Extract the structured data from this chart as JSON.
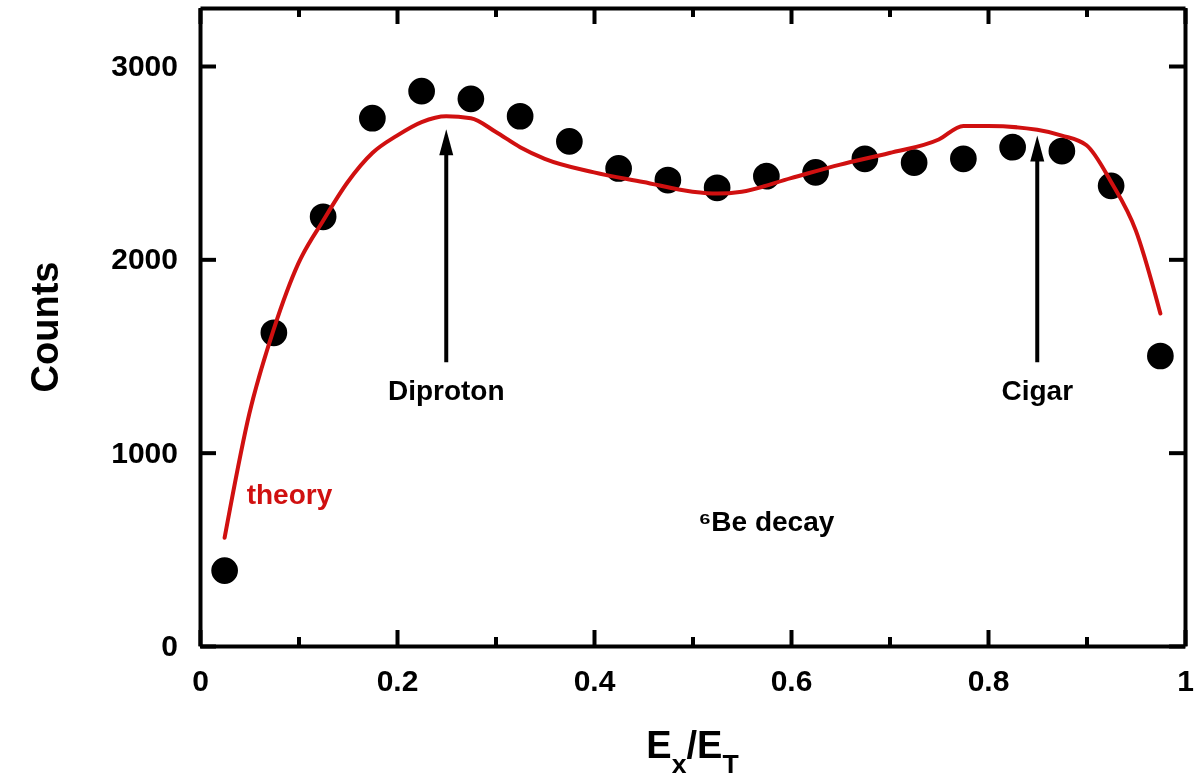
{
  "chart_data": {
    "type": "scatter",
    "xlabel": "E$_{x}$/E$_{T}$",
    "ylabel": "Counts",
    "xlim": [
      0,
      1
    ],
    "ylim": [
      0,
      3300
    ],
    "xticks": [
      0,
      {
        "value": 0.1,
        "label": null
      },
      0.2,
      {
        "value": 0.3,
        "label": null
      },
      0.4,
      {
        "value": 0.5,
        "label": null
      },
      0.6,
      {
        "value": 0.7,
        "label": null
      },
      0.8,
      {
        "value": 0.9,
        "label": null
      },
      1
    ],
    "yticks": [
      0,
      1000,
      2000,
      3000
    ],
    "series": [
      {
        "color": "#000000",
        "marker": "circle",
        "x": [
          0.025,
          0.075,
          0.125,
          0.175,
          0.225,
          0.275,
          0.325,
          0.375,
          0.425,
          0.475,
          0.525,
          0.575,
          0.625,
          0.675,
          0.725,
          0.775,
          0.825,
          0.875,
          0.925,
          0.975
        ],
        "values": [
          390,
          1620,
          2220,
          2730,
          2870,
          2830,
          2740,
          2610,
          2470,
          2410,
          2370,
          2430,
          2450,
          2520,
          2500,
          2520,
          2580,
          2560,
          2380,
          1500
        ]
      },
      {
        "type": "line",
        "name": "theory",
        "color": "#d01010",
        "marker": "none",
        "line_style": "solid",
        "x": [
          0.025,
          0.05,
          0.075,
          0.1,
          0.125,
          0.15,
          0.175,
          0.2,
          0.225,
          0.25,
          0.275,
          0.3,
          0.325,
          0.35,
          0.4,
          0.45,
          0.5,
          0.525,
          0.55,
          0.6,
          0.65,
          0.7,
          0.75,
          0.775,
          0.8,
          0.85,
          0.875,
          0.9,
          0.925,
          0.95,
          0.975
        ],
        "values": [
          560,
          1200,
          1640,
          1980,
          2200,
          2400,
          2550,
          2640,
          2710,
          2740,
          2730,
          2660,
          2580,
          2520,
          2450,
          2400,
          2350,
          2340,
          2350,
          2420,
          2490,
          2550,
          2620,
          2690,
          2690,
          2670,
          2640,
          2590,
          2400,
          2150,
          1720
        ]
      }
    ],
    "annotations": [
      "Diproton",
      "Cigar",
      "⁶Be decay"
    ]
  }
}
